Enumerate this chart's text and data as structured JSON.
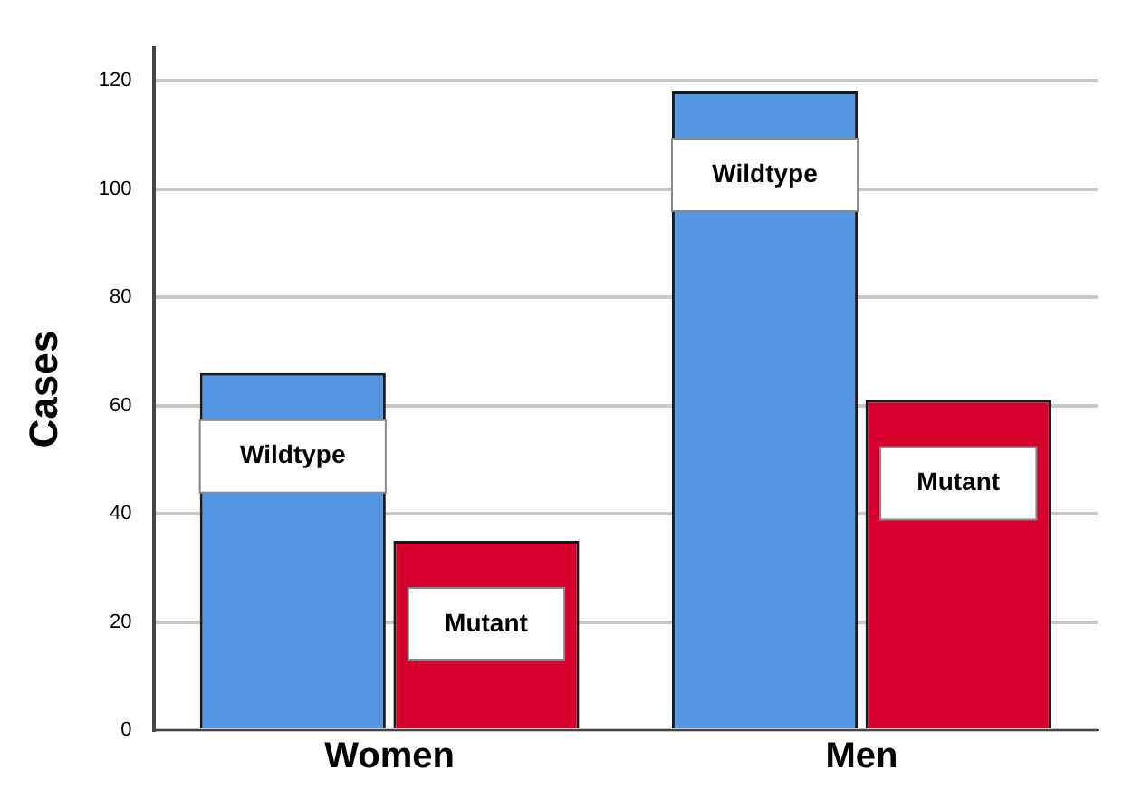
{
  "chart_data": {
    "type": "bar",
    "ylabel": "Cases",
    "categories": [
      "Women",
      "Men"
    ],
    "series": [
      {
        "name": "Wildtype",
        "color": "#5596e3",
        "values": [
          66,
          118
        ]
      },
      {
        "name": "Mutant",
        "color": "#d6002f",
        "values": [
          35,
          61
        ]
      }
    ],
    "ylim": [
      0,
      126
    ],
    "yticks": [
      0,
      20,
      40,
      60,
      80,
      100,
      120
    ],
    "grid": "y",
    "legend": false
  }
}
